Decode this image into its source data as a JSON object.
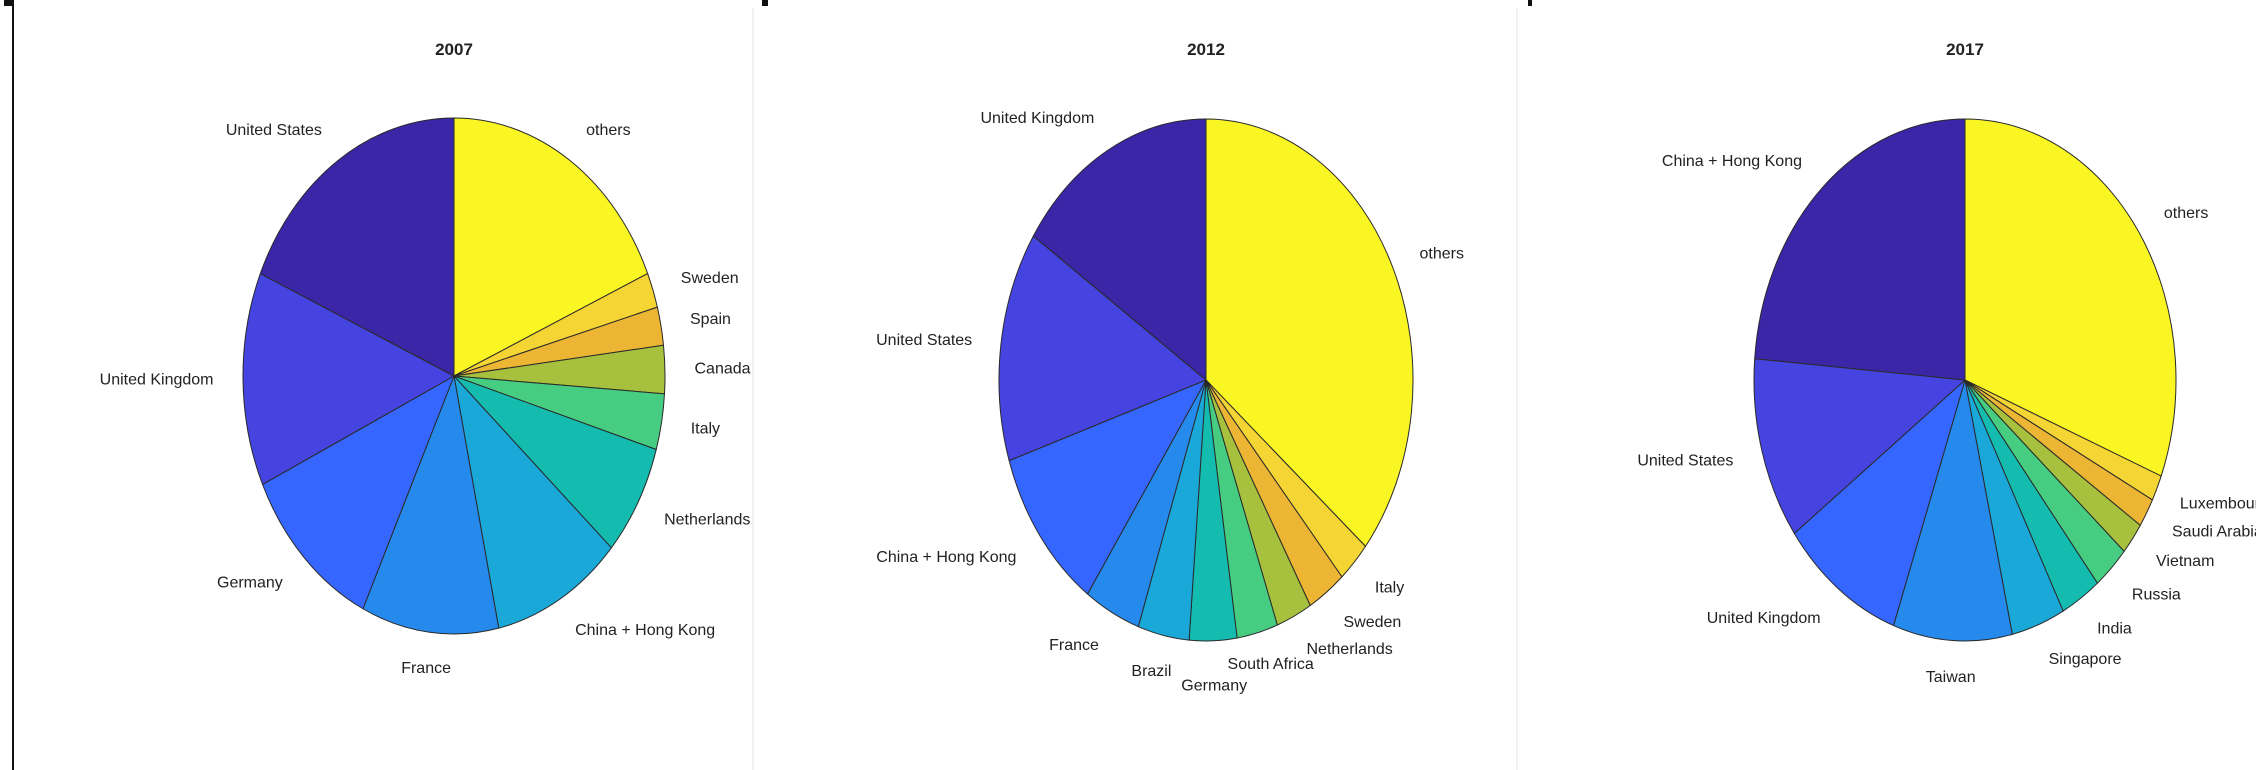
{
  "chart_data": [
    {
      "type": "pie",
      "title": "2007",
      "slices": [
        {
          "label": "others",
          "value": 18.5,
          "color": "#f9f623"
        },
        {
          "label": "Sweden",
          "value": 2.2,
          "color": "#f5d534"
        },
        {
          "label": "Spain",
          "value": 2.4,
          "color": "#ecb634"
        },
        {
          "label": "Canada",
          "value": 3.0,
          "color": "#a7c03d"
        },
        {
          "label": "Italy",
          "value": 3.5,
          "color": "#46cd82"
        },
        {
          "label": "Netherlands",
          "value": 7.0,
          "color": "#14bcb0"
        },
        {
          "label": "China + Hong Kong",
          "value": 10.0,
          "color": "#1aa8d8"
        },
        {
          "label": "France",
          "value": 10.5,
          "color": "#2689ec"
        },
        {
          "label": "Germany",
          "value": 11.0,
          "color": "#3566ff"
        },
        {
          "label": "United Kingdom",
          "value": 13.4,
          "color": "#4544e0"
        },
        {
          "label": "United States",
          "value": 18.5,
          "color": "#3a26a7"
        }
      ]
    },
    {
      "type": "pie",
      "title": "2012",
      "slices": [
        {
          "label": "others",
          "value": 36.0,
          "color": "#f9f623"
        },
        {
          "label": "Italy",
          "value": 2.6,
          "color": "#f5d534"
        },
        {
          "label": "Sweden",
          "value": 3.0,
          "color": "#ecb634"
        },
        {
          "label": "Netherlands",
          "value": 2.8,
          "color": "#a7c03d"
        },
        {
          "label": "South Africa",
          "value": 3.2,
          "color": "#46cd82"
        },
        {
          "label": "Germany",
          "value": 3.7,
          "color": "#14bcb0"
        },
        {
          "label": "Brazil",
          "value": 4.0,
          "color": "#1aa8d8"
        },
        {
          "label": "France",
          "value": 4.4,
          "color": "#2689ec"
        },
        {
          "label": "China + Hong Kong",
          "value": 10.3,
          "color": "#3566ff"
        },
        {
          "label": "United States",
          "value": 14.3,
          "color": "#4544e0"
        },
        {
          "label": "United Kingdom",
          "value": 15.7,
          "color": "#3a26a7"
        }
      ]
    },
    {
      "type": "pie",
      "title": "2017",
      "slices": [
        {
          "label": "others",
          "value": 31.0,
          "color": "#f9f623"
        },
        {
          "label": "Luxembourg",
          "value": 1.6,
          "color": "#f5d534"
        },
        {
          "label": "Saudi Arabia",
          "value": 1.8,
          "color": "#ecb634"
        },
        {
          "label": "Vietnam",
          "value": 2.0,
          "color": "#a7c03d"
        },
        {
          "label": "Russia",
          "value": 2.8,
          "color": "#46cd82"
        },
        {
          "label": "India",
          "value": 3.1,
          "color": "#14bcb0"
        },
        {
          "label": "Singapore",
          "value": 4.1,
          "color": "#1aa8d8"
        },
        {
          "label": "Taiwan",
          "value": 9.1,
          "color": "#2689ec"
        },
        {
          "label": "United Kingdom",
          "value": 9.5,
          "color": "#3566ff"
        },
        {
          "label": "United States",
          "value": 11.3,
          "color": "#4544e0"
        },
        {
          "label": "China + Hong Kong",
          "value": 23.7,
          "color": "#3a26a7"
        }
      ]
    }
  ]
}
